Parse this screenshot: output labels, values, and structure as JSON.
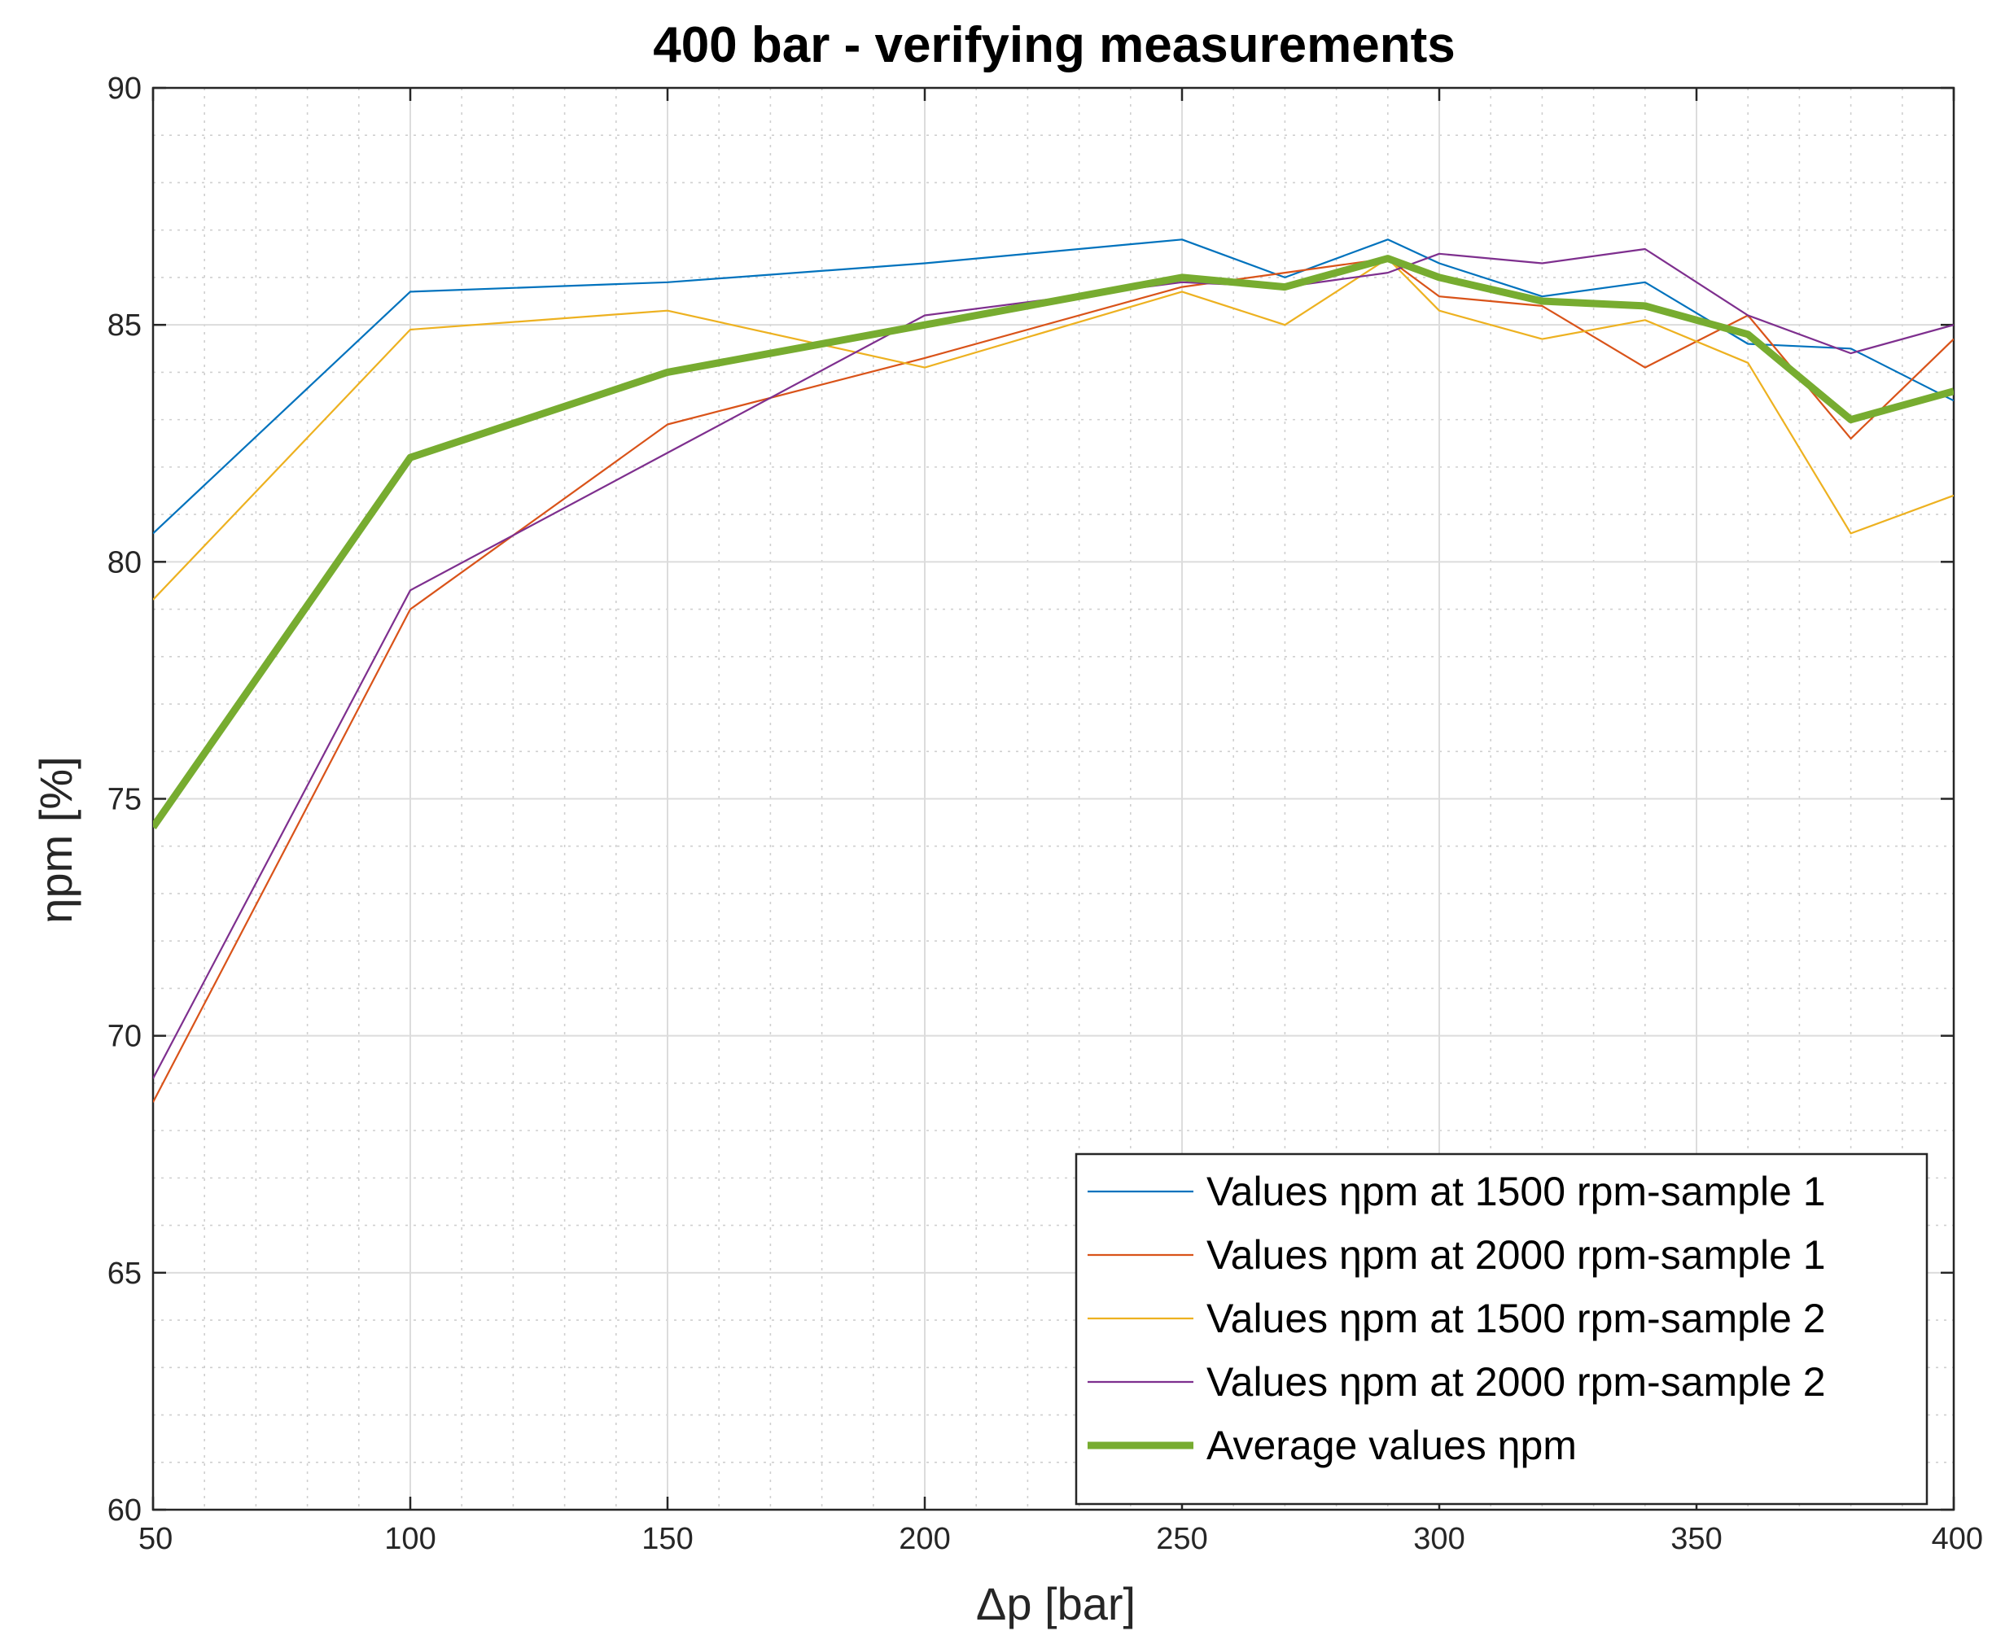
{
  "chart_data": {
    "type": "line",
    "title": "400 bar - verifying measurements",
    "xlabel": "Δp  [bar]",
    "ylabel": "ηpm  [%]",
    "xlim": [
      50,
      400
    ],
    "ylim": [
      60,
      90
    ],
    "xticks": [
      "50",
      "100",
      "150",
      "200",
      "250",
      "300",
      "350",
      "400"
    ],
    "yticks": [
      "60",
      "65",
      "70",
      "75",
      "80",
      "85",
      "90"
    ],
    "grid": true,
    "legend_position": "bottom-right",
    "x": [
      50,
      100,
      150,
      200,
      250,
      270,
      290,
      300,
      320,
      340,
      360,
      380,
      400
    ],
    "series": [
      {
        "name": "Values ηpm at 1500 rpm-sample 1",
        "color": "#0072BD",
        "values": [
          80.6,
          85.7,
          85.9,
          86.3,
          86.8,
          86.0,
          86.8,
          86.3,
          85.6,
          85.9,
          84.6,
          84.5,
          83.4
        ]
      },
      {
        "name": "Values ηpm at 2000 rpm-sample 1",
        "color": "#D95319",
        "values": [
          68.6,
          79.0,
          82.9,
          84.3,
          85.8,
          86.1,
          86.4,
          85.6,
          85.4,
          84.1,
          85.2,
          82.6,
          84.7
        ]
      },
      {
        "name": "Values ηpm at 1500 rpm-sample 2",
        "color": "#EDB120",
        "values": [
          79.2,
          84.9,
          85.3,
          84.1,
          85.7,
          85.0,
          86.4,
          85.3,
          84.7,
          85.1,
          84.2,
          80.6,
          81.4
        ]
      },
      {
        "name": "Values ηpm at 2000 rpm-sample 2",
        "color": "#7E2F8E",
        "values": [
          69.1,
          79.4,
          82.3,
          85.2,
          85.9,
          85.8,
          86.1,
          86.5,
          86.3,
          86.6,
          85.2,
          84.4,
          85.0
        ]
      },
      {
        "name": "Average values ηpm",
        "color": "#77AC30",
        "values": [
          74.4,
          82.2,
          84.0,
          85.0,
          86.0,
          85.8,
          86.4,
          86.0,
          85.5,
          85.4,
          84.8,
          83.0,
          83.6
        ]
      }
    ]
  }
}
